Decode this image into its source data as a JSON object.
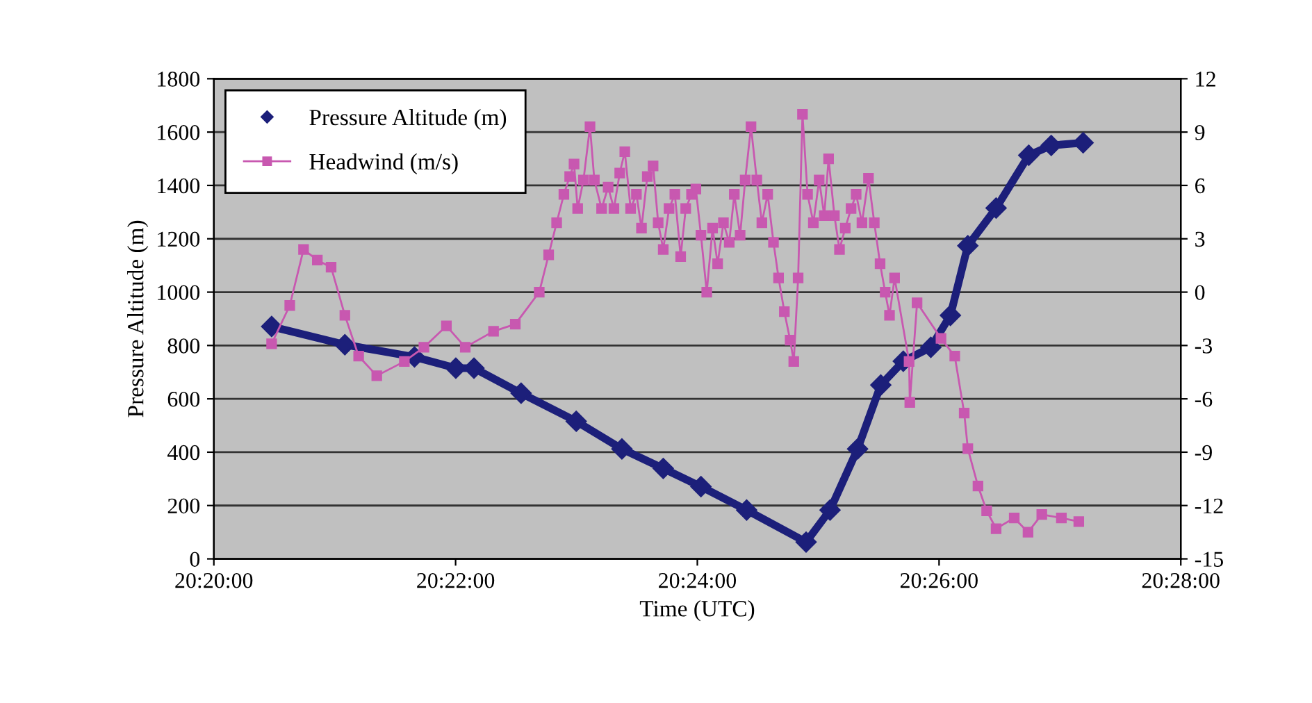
{
  "chart_data": {
    "type": "line",
    "xlabel": "Time (UTC)",
    "ylabel": "Pressure Altitude (m)",
    "xlim": [
      20.333333,
      20.466667
    ],
    "xticks": [
      {
        "value": 20.333333,
        "label": "20:20:00"
      },
      {
        "value": 20.366667,
        "label": "20:22:00"
      },
      {
        "value": 20.4,
        "label": "20:24:00"
      },
      {
        "value": 20.433333,
        "label": "20:26:00"
      },
      {
        "value": 20.466667,
        "label": "20:28:00"
      }
    ],
    "ylim": [
      0,
      1800
    ],
    "yticks": [
      0,
      200,
      400,
      600,
      800,
      1000,
      1200,
      1400,
      1600,
      1800
    ],
    "y2lim": [
      -15,
      12
    ],
    "y2ticks": [
      -15,
      -12,
      -9,
      -6,
      -3,
      0,
      3,
      6,
      9,
      12
    ],
    "grid": "y",
    "legend": "top left",
    "series": [
      {
        "name": "Pressure Altitude (m)",
        "color": "#1c1f7a",
        "marker": "diamond",
        "x": [
          20.3413,
          20.3514,
          20.361,
          20.3667,
          20.3692,
          20.3757,
          20.3833,
          20.3896,
          20.3953,
          20.4005,
          20.4068,
          20.415,
          20.4183,
          20.4221,
          20.4253,
          20.4284,
          20.4322,
          20.4349,
          20.4373,
          20.4412,
          20.4457,
          20.4488,
          20.4532
        ],
        "values": [
          871,
          803,
          757,
          715,
          715,
          621,
          516,
          412,
          339,
          271,
          183,
          63,
          183,
          412,
          652,
          741,
          793,
          913,
          1174,
          1315,
          1513,
          1550,
          1560
        ]
      },
      {
        "name": "Headwind (m/s)",
        "color": "#c858b0",
        "marker": "square",
        "axis": "y2",
        "x": [
          20.3413,
          20.3438,
          20.3457,
          20.3476,
          20.3495,
          20.3514,
          20.3533,
          20.3558,
          20.3596,
          20.3623,
          20.3654,
          20.368,
          20.3719,
          20.3749,
          20.3782,
          20.3795,
          20.3806,
          20.3816,
          20.3824,
          20.383,
          20.3835,
          20.3843,
          20.3852,
          20.3858,
          20.3868,
          20.3877,
          20.3885,
          20.3893,
          20.39,
          20.3908,
          20.3916,
          20.3923,
          20.3931,
          20.3939,
          20.3946,
          20.3953,
          20.3961,
          20.3969,
          20.3977,
          20.3984,
          20.3992,
          20.3998,
          20.4005,
          20.4013,
          20.4021,
          20.4028,
          20.4036,
          20.4044,
          20.4051,
          20.4059,
          20.4066,
          20.4074,
          20.4082,
          20.4089,
          20.4097,
          20.4105,
          20.4112,
          20.412,
          20.4128,
          20.4133,
          20.4139,
          20.4145,
          20.4152,
          20.416,
          20.4168,
          20.4175,
          20.4181,
          20.4189,
          20.4196,
          20.4204,
          20.4212,
          20.4219,
          20.4227,
          20.4236,
          20.4244,
          20.4252,
          20.4259,
          20.4265,
          20.4272,
          20.4292,
          20.4293,
          20.4303,
          20.4336,
          20.4355,
          20.4368,
          20.4373,
          20.4387,
          20.4399,
          20.4412,
          20.4437,
          20.4456,
          20.4475,
          20.4502,
          20.4526
        ],
        "values": [
          -2.9,
          -0.75,
          2.4,
          1.8,
          1.4,
          -1.3,
          -3.6,
          -4.7,
          -3.9,
          -3.1,
          -1.9,
          -3.1,
          -2.2,
          -1.8,
          0.0,
          2.1,
          3.9,
          5.5,
          6.5,
          7.2,
          4.7,
          6.3,
          9.3,
          6.3,
          4.7,
          5.9,
          4.7,
          6.7,
          7.9,
          4.7,
          5.5,
          3.6,
          6.5,
          7.1,
          3.9,
          2.4,
          4.7,
          5.5,
          2.0,
          4.7,
          5.5,
          5.8,
          3.2,
          0.0,
          3.6,
          1.6,
          3.9,
          2.8,
          5.5,
          3.2,
          6.3,
          9.3,
          6.3,
          3.9,
          5.5,
          2.8,
          0.8,
          -1.1,
          -2.7,
          -3.9,
          0.8,
          10.0,
          5.5,
          3.9,
          6.3,
          4.3,
          7.5,
          4.3,
          2.4,
          3.6,
          4.7,
          5.5,
          3.9,
          6.4,
          3.9,
          1.6,
          0.0,
          -1.3,
          0.8,
          -3.9,
          -6.2,
          -0.6,
          -2.6,
          -3.6,
          -6.8,
          -8.8,
          -10.9,
          -12.3,
          -13.3,
          -12.7,
          -13.5,
          -12.5,
          -12.7,
          -12.9
        ]
      }
    ]
  }
}
